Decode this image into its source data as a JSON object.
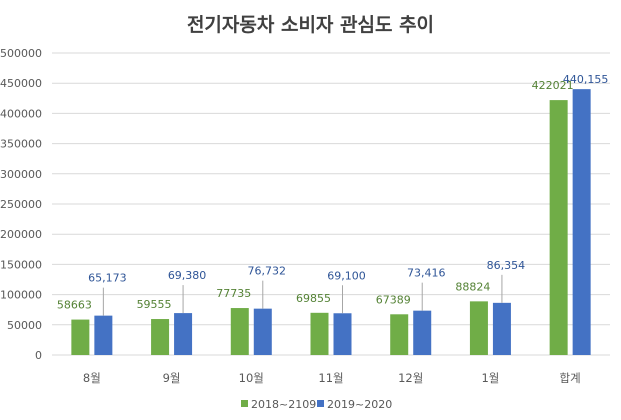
{
  "chart_data": {
    "type": "bar",
    "title": "전기자동차 소비자 관심도 추이",
    "categories": [
      "8월",
      "9월",
      "10월",
      "11월",
      "12월",
      "1월",
      "합계"
    ],
    "series": [
      {
        "name": "2018~2109",
        "values": [
          58663,
          59555,
          77735,
          69855,
          67389,
          88824,
          422021
        ],
        "labels": [
          "58663",
          "59555",
          "77735",
          "69855",
          "67389",
          "88824",
          "422021"
        ],
        "color": "#70AD47",
        "label_color": "#548235"
      },
      {
        "name": "2019~2020",
        "values": [
          65173,
          69380,
          76732,
          69100,
          73416,
          86354,
          440155
        ],
        "labels": [
          "65,173",
          "69,380",
          "76,732",
          "69,100",
          "73,416",
          "86,354",
          "440,155"
        ],
        "color": "#4472C4",
        "label_color": "#2F5597"
      }
    ],
    "yticks": [
      "0",
      "50000",
      "100000",
      "150000",
      "200000",
      "250000",
      "300000",
      "350000",
      "400000",
      "450000",
      "500000"
    ],
    "ylim": [
      0,
      500000
    ],
    "grid": true,
    "legend": "bottom"
  }
}
